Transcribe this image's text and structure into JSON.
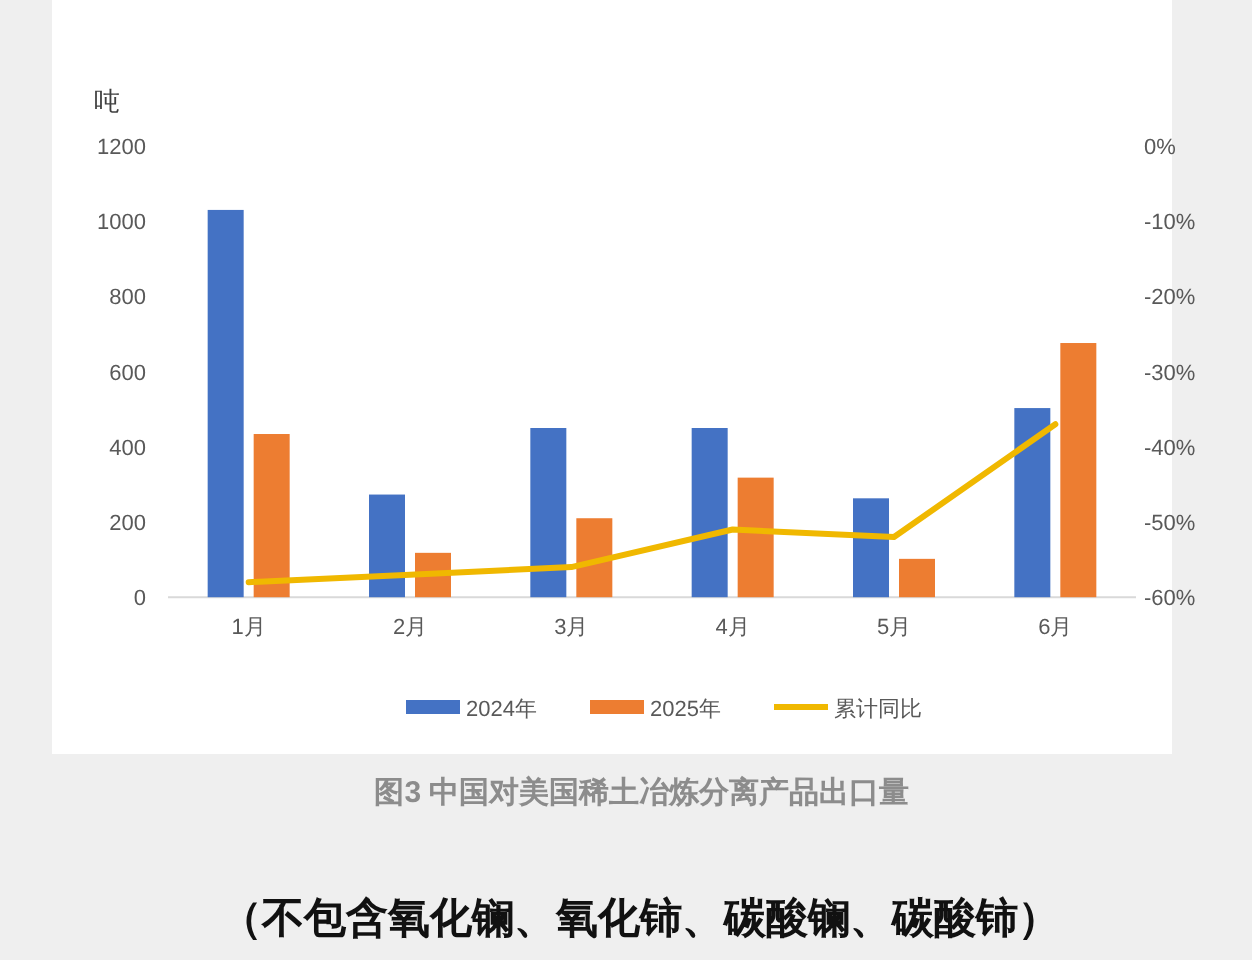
{
  "chart_data": {
    "type": "bar",
    "title": "图3 中国对美国稀土冶炼分离产品出口量",
    "ylabel": "吨",
    "categories": [
      "1月",
      "2月",
      "3月",
      "4月",
      "5月",
      "6月"
    ],
    "series": [
      {
        "name": "2024年",
        "color": "#4472c4",
        "values": [
          1030,
          273,
          450,
          450,
          263,
          503
        ]
      },
      {
        "name": "2025年",
        "color": "#ed7d31",
        "values": [
          434,
          118,
          210,
          318,
          102,
          676
        ]
      },
      {
        "name": "累计同比",
        "type": "line",
        "axis": "y2",
        "color": "#f0b800",
        "values": [
          -58,
          -57,
          -56,
          -51,
          -52,
          -37
        ]
      }
    ],
    "ylim": [
      0,
      1200
    ],
    "yticks": [
      0,
      200,
      400,
      600,
      800,
      1000,
      1200
    ],
    "y2lim": [
      -60,
      0
    ],
    "y2ticks": [
      {
        "value": -60,
        "label": "-60%"
      },
      {
        "value": -50,
        "label": "-50%"
      },
      {
        "value": -40,
        "label": "-40%"
      },
      {
        "value": -30,
        "label": "-30%"
      },
      {
        "value": -20,
        "label": "-20%"
      },
      {
        "value": -10,
        "label": "-10%"
      },
      {
        "value": 0,
        "label": "0%"
      }
    ],
    "legend": "bottom",
    "grid": false,
    "annotations": [
      "（不包含氧化镧、氧化铈、碳酸镧、碳酸铈）"
    ]
  }
}
